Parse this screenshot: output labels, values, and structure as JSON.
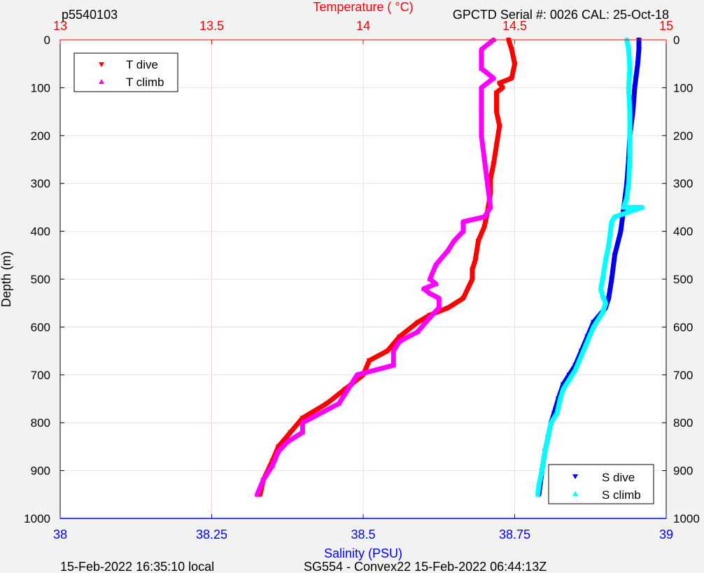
{
  "header": {
    "profile_id": "p5540103",
    "serial": "GPCTD Serial #: 0026 CAL: 25-Oct-18"
  },
  "footer": {
    "local_time": "15-Feb-2022 16:35:10 local",
    "mission": "SG554 - Convex22 15-Feb-2022 06:44:13Z"
  },
  "colors": {
    "temperature_axis": "#ff0000",
    "salinity_axis": "#0000ff",
    "t_dive": "#ff0000",
    "t_climb": "#ff00ff",
    "s_dive": "#0000ee",
    "s_climb": "#00ffff"
  },
  "chart_data": {
    "type": "line",
    "y_axis": {
      "label": "Depth (m)",
      "range": [
        0,
        1000
      ],
      "reversed": true,
      "ticks": [
        "0",
        "100",
        "200",
        "300",
        "400",
        "500",
        "600",
        "700",
        "800",
        "900",
        "1000"
      ]
    },
    "top_axis": {
      "label": "Temperature (    °C)",
      "range": [
        13,
        15
      ],
      "ticks": [
        "13",
        "13.5",
        "14",
        "14.5",
        "15"
      ]
    },
    "bottom_axis": {
      "label": "Salinity (PSU)",
      "range": [
        38,
        39
      ],
      "ticks": [
        "38",
        "38.25",
        "38.5",
        "38.75",
        "39"
      ]
    },
    "grid": "vertical temperature gridlines, horizontal depth gridlines",
    "legends": [
      {
        "placement": "top-left",
        "entries": [
          "T dive",
          "T climb"
        ]
      },
      {
        "placement": "bottom-right",
        "entries": [
          "S dive",
          "S climb"
        ]
      }
    ],
    "series": [
      {
        "name": "T dive",
        "axis": "temperature",
        "marker": "down-triangle",
        "points": [
          [
            14.48,
            0
          ],
          [
            14.49,
            20
          ],
          [
            14.5,
            50
          ],
          [
            14.49,
            80
          ],
          [
            14.45,
            90
          ],
          [
            14.46,
            100
          ],
          [
            14.44,
            110
          ],
          [
            14.44,
            150
          ],
          [
            14.45,
            180
          ],
          [
            14.44,
            220
          ],
          [
            14.43,
            260
          ],
          [
            14.42,
            290
          ],
          [
            14.42,
            320
          ],
          [
            14.41,
            360
          ],
          [
            14.4,
            390
          ],
          [
            14.38,
            420
          ],
          [
            14.37,
            460
          ],
          [
            14.36,
            480
          ],
          [
            14.36,
            500
          ],
          [
            14.33,
            540
          ],
          [
            14.28,
            560
          ],
          [
            14.22,
            575
          ],
          [
            14.18,
            590
          ],
          [
            14.12,
            620
          ],
          [
            14.08,
            650
          ],
          [
            14.02,
            670
          ],
          [
            14.0,
            700
          ],
          [
            13.94,
            730
          ],
          [
            13.88,
            760
          ],
          [
            13.8,
            790
          ],
          [
            13.76,
            820
          ],
          [
            13.72,
            850
          ],
          [
            13.7,
            880
          ],
          [
            13.67,
            920
          ],
          [
            13.66,
            950
          ]
        ]
      },
      {
        "name": "T climb",
        "axis": "temperature",
        "marker": "up-triangle",
        "points": [
          [
            14.43,
            0
          ],
          [
            14.39,
            20
          ],
          [
            14.39,
            60
          ],
          [
            14.43,
            80
          ],
          [
            14.39,
            100
          ],
          [
            14.39,
            140
          ],
          [
            14.39,
            200
          ],
          [
            14.4,
            250
          ],
          [
            14.41,
            300
          ],
          [
            14.42,
            350
          ],
          [
            14.4,
            370
          ],
          [
            14.33,
            380
          ],
          [
            14.33,
            400
          ],
          [
            14.3,
            420
          ],
          [
            14.28,
            440
          ],
          [
            14.24,
            470
          ],
          [
            14.22,
            500
          ],
          [
            14.24,
            510
          ],
          [
            14.2,
            520
          ],
          [
            14.22,
            530
          ],
          [
            14.25,
            540
          ],
          [
            14.25,
            560
          ],
          [
            14.22,
            580
          ],
          [
            14.18,
            610
          ],
          [
            14.12,
            630
          ],
          [
            14.1,
            650
          ],
          [
            14.1,
            680
          ],
          [
            13.98,
            700
          ],
          [
            13.96,
            720
          ],
          [
            13.92,
            760
          ],
          [
            13.8,
            800
          ],
          [
            13.8,
            820
          ],
          [
            13.75,
            840
          ],
          [
            13.72,
            860
          ],
          [
            13.7,
            890
          ],
          [
            13.67,
            920
          ],
          [
            13.65,
            950
          ]
        ]
      },
      {
        "name": "S dive",
        "axis": "salinity",
        "marker": "down-triangle",
        "points": [
          [
            38.955,
            0
          ],
          [
            38.955,
            20
          ],
          [
            38.953,
            50
          ],
          [
            38.95,
            80
          ],
          [
            38.948,
            100
          ],
          [
            38.945,
            150
          ],
          [
            38.94,
            200
          ],
          [
            38.938,
            250
          ],
          [
            38.935,
            300
          ],
          [
            38.93,
            350
          ],
          [
            38.925,
            400
          ],
          [
            38.915,
            450
          ],
          [
            38.91,
            500
          ],
          [
            38.905,
            540
          ],
          [
            38.9,
            560
          ],
          [
            38.88,
            590
          ],
          [
            38.87,
            620
          ],
          [
            38.86,
            650
          ],
          [
            38.85,
            680
          ],
          [
            38.84,
            700
          ],
          [
            38.83,
            720
          ],
          [
            38.822,
            750
          ],
          [
            38.815,
            780
          ],
          [
            38.81,
            800
          ],
          [
            38.805,
            830
          ],
          [
            38.8,
            860
          ],
          [
            38.795,
            900
          ],
          [
            38.792,
            930
          ],
          [
            38.79,
            950
          ]
        ]
      },
      {
        "name": "S climb",
        "axis": "salinity",
        "marker": "up-triangle",
        "points": [
          [
            38.935,
            0
          ],
          [
            38.938,
            20
          ],
          [
            38.94,
            60
          ],
          [
            38.938,
            100
          ],
          [
            38.94,
            150
          ],
          [
            38.94,
            200
          ],
          [
            38.94,
            250
          ],
          [
            38.938,
            300
          ],
          [
            38.935,
            330
          ],
          [
            38.93,
            350
          ],
          [
            38.96,
            350
          ],
          [
            38.915,
            370
          ],
          [
            38.91,
            380
          ],
          [
            38.908,
            400
          ],
          [
            38.905,
            430
          ],
          [
            38.9,
            460
          ],
          [
            38.895,
            500
          ],
          [
            38.892,
            520
          ],
          [
            38.895,
            535
          ],
          [
            38.9,
            550
          ],
          [
            38.895,
            570
          ],
          [
            38.88,
            600
          ],
          [
            38.87,
            630
          ],
          [
            38.86,
            660
          ],
          [
            38.85,
            690
          ],
          [
            38.84,
            710
          ],
          [
            38.83,
            730
          ],
          [
            38.825,
            750
          ],
          [
            38.82,
            780
          ],
          [
            38.81,
            800
          ],
          [
            38.805,
            830
          ],
          [
            38.8,
            860
          ],
          [
            38.795,
            900
          ],
          [
            38.79,
            930
          ],
          [
            38.788,
            950
          ]
        ]
      }
    ]
  }
}
